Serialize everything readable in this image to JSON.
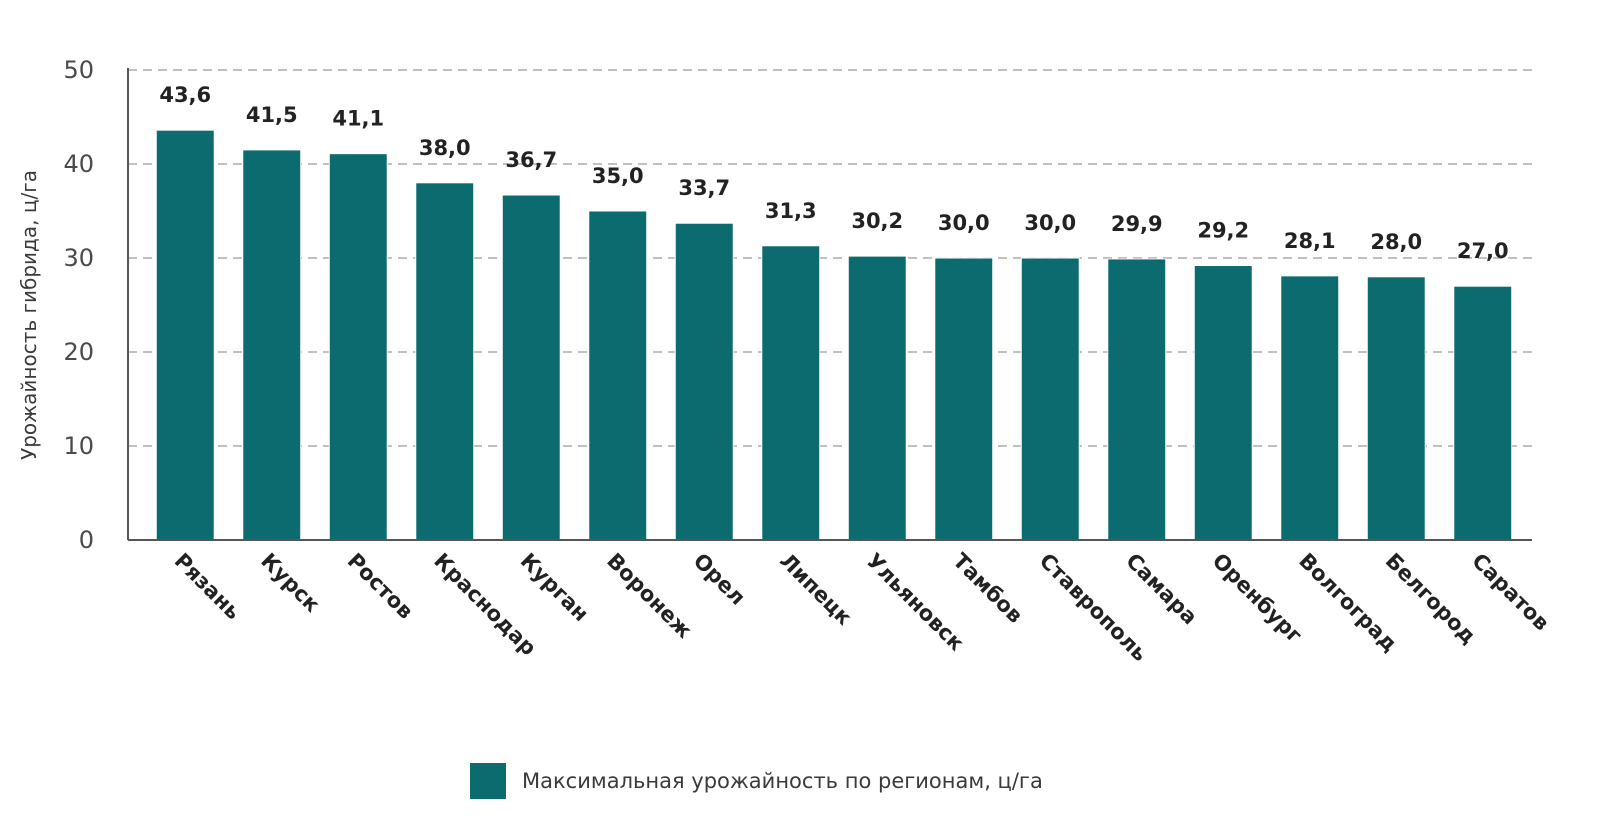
{
  "colors": {
    "bar": "#0b6b6f",
    "axis": "#555555",
    "grid": "#9a9a9a",
    "text": "#222222"
  },
  "chart_data": {
    "type": "bar",
    "title": "",
    "xlabel": "",
    "ylabel": "Урожайность гибрида, ц/га",
    "ylim": [
      0,
      50
    ],
    "yticks": [
      0,
      10,
      20,
      30,
      40,
      50
    ],
    "grid": "horizontal dashed",
    "legend_position": "bottom",
    "categories": [
      "Рязань",
      "Курск",
      "Ростов",
      "Краснодар",
      "Курган",
      "Воронеж",
      "Орел",
      "Липецк",
      "Ульяновск",
      "Тамбов",
      "Ставрополь",
      "Самара",
      "Оренбург",
      "Волгоград",
      "Белгород",
      "Саратов"
    ],
    "series": [
      {
        "name": "Максимальная урожайность по регионам, ц/га",
        "values": [
          43.6,
          41.5,
          41.1,
          38.0,
          36.7,
          35.0,
          33.7,
          31.3,
          30.2,
          30.0,
          30.0,
          29.9,
          29.2,
          28.1,
          28.0,
          27.0
        ],
        "labels": [
          "43,6",
          "41,5",
          "41,1",
          "38,0",
          "36,7",
          "35,0",
          "33,7",
          "31,3",
          "30,2",
          "30,0",
          "30,0",
          "29,9",
          "29,2",
          "28,1",
          "28,0",
          "27,0"
        ]
      }
    ]
  }
}
